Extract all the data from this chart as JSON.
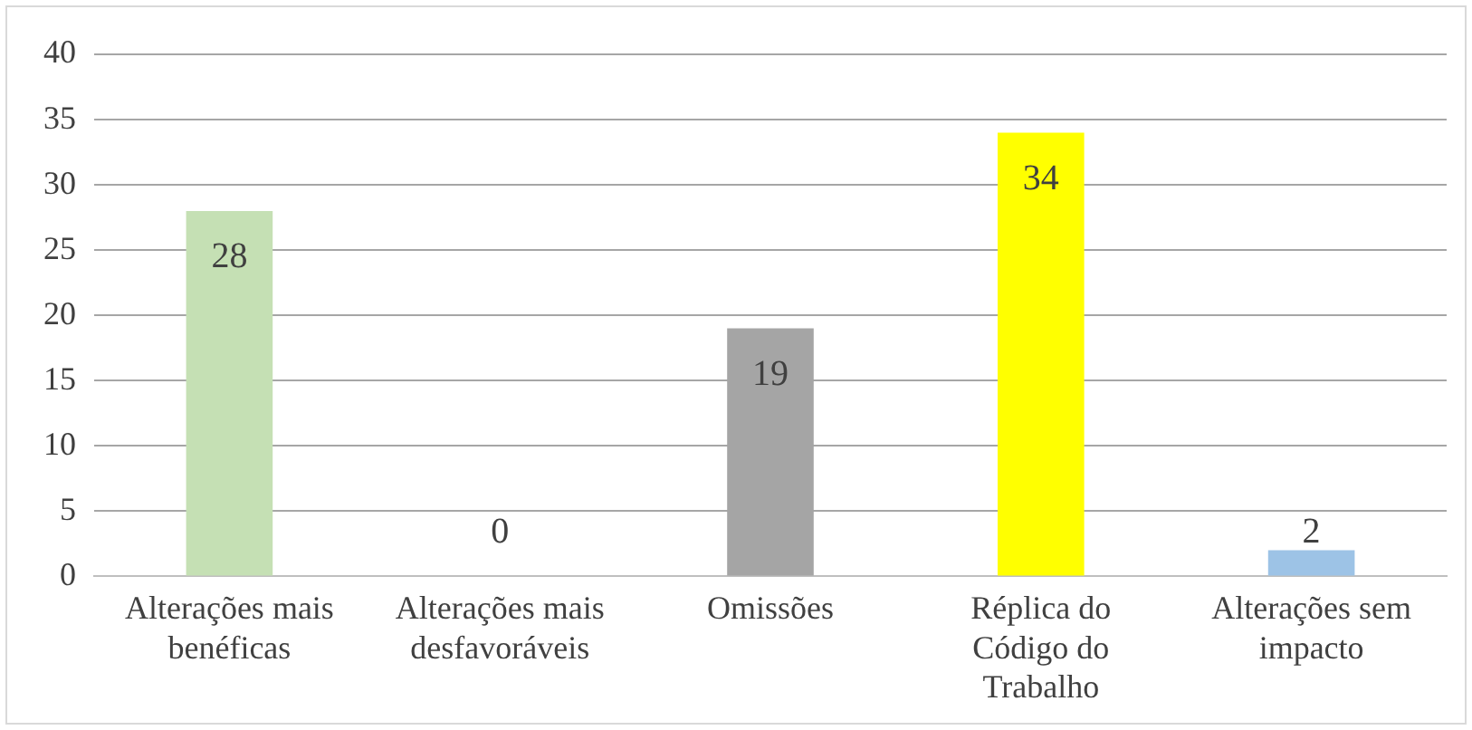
{
  "chart_data": {
    "type": "bar",
    "categories": [
      "Alterações mais benéficas",
      "Alterações mais desfavoráveis",
      "Omissões",
      "Réplica do Código do Trabalho",
      "Alterações sem impacto"
    ],
    "values": [
      28,
      0,
      19,
      34,
      2
    ],
    "colors": [
      "#c5e0b4",
      "#f4b183",
      "#a5a5a5",
      "#ffff00",
      "#9dc3e6"
    ],
    "ylim": [
      0,
      40
    ],
    "yticks": [
      0,
      5,
      10,
      15,
      20,
      25,
      30,
      35,
      40
    ],
    "grid": "y",
    "data_labels": true
  }
}
